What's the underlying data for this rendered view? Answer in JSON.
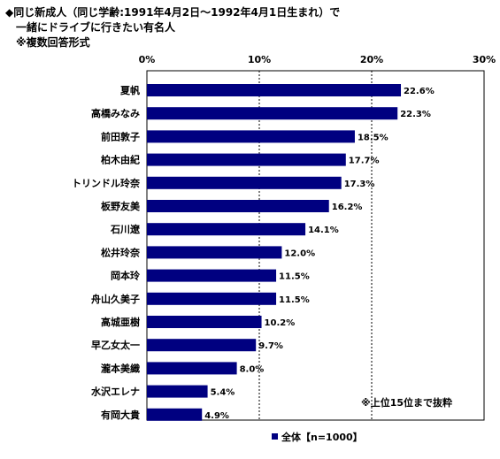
{
  "chart_data": {
    "type": "bar",
    "orientation": "horizontal",
    "title_lines": [
      "◆同じ新成人（同じ学齢:1991年4月2日～1992年4月1日生まれ）で",
      "　一緒にドライブに行きたい有名人",
      "　※複数回答形式"
    ],
    "categories": [
      "夏帆",
      "高橋みなみ",
      "前田敦子",
      "柏木由紀",
      "トリンドル玲奈",
      "板野友美",
      "石川遼",
      "松井玲奈",
      "岡本玲",
      "舟山久美子",
      "高城亜樹",
      "早乙女太一",
      "瀧本美織",
      "水沢エレナ",
      "有岡大貴"
    ],
    "series": [
      {
        "name": "全体【n=1000】",
        "values": [
          22.6,
          22.3,
          18.5,
          17.7,
          17.3,
          16.2,
          14.1,
          12.0,
          11.5,
          11.5,
          10.2,
          9.7,
          8.0,
          5.4,
          4.9
        ],
        "value_labels": [
          "22.6%",
          "22.3%",
          "18.5%",
          "17.7%",
          "17.3%",
          "16.2%",
          "14.1%",
          "12.0%",
          "11.5%",
          "11.5%",
          "10.2%",
          "9.7%",
          "8.0%",
          "5.4%",
          "4.9%"
        ],
        "color": "#000080"
      }
    ],
    "xlim": [
      0,
      30
    ],
    "ticks": [
      0,
      10,
      20,
      30
    ],
    "tick_labels": [
      "0%",
      "10%",
      "20%",
      "30%"
    ],
    "grid": "vertical dotted",
    "legend_position": "bottom",
    "annotation": "※上位15位まで抜粋"
  }
}
